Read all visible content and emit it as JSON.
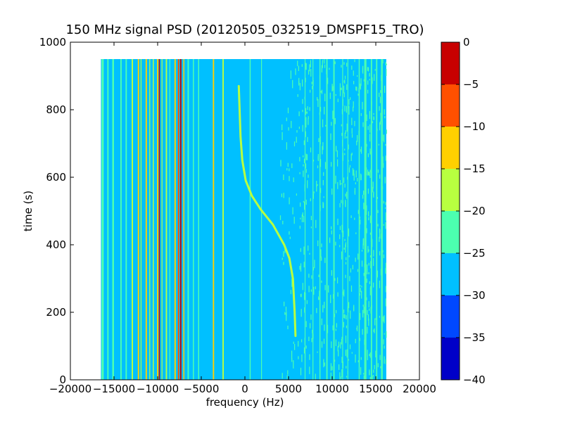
{
  "chart_data": {
    "type": "heatmap",
    "title": "150 MHz signal PSD (20120505_032519_DMSPF15_TRO)",
    "xlabel": "frequency (Hz)",
    "ylabel": "time (s)",
    "xlim": [
      -20000,
      20000
    ],
    "ylim": [
      0,
      1000
    ],
    "xticks": [
      -20000,
      -15000,
      -10000,
      -5000,
      0,
      5000,
      10000,
      15000,
      20000
    ],
    "yticks": [
      0,
      200,
      400,
      600,
      800,
      1000
    ],
    "data_extent": {
      "x": [
        -16500,
        16200
      ],
      "y": [
        0,
        950
      ]
    },
    "background_level": -27.5,
    "colorbar": {
      "ticks": [
        0,
        -5,
        -10,
        -15,
        -20,
        -25,
        -30,
        -35,
        -40
      ],
      "levels": [
        {
          "range": [
            -40,
            -35
          ],
          "color": "#0000c8"
        },
        {
          "range": [
            -35,
            -30
          ],
          "color": "#0048ff"
        },
        {
          "range": [
            -30,
            -25
          ],
          "color": "#00c0ff"
        },
        {
          "range": [
            -25,
            -20
          ],
          "color": "#4cffb0"
        },
        {
          "range": [
            -20,
            -15
          ],
          "color": "#b8ff40"
        },
        {
          "range": [
            -15,
            -10
          ],
          "color": "#ffd000"
        },
        {
          "range": [
            -10,
            -5
          ],
          "color": "#ff5000"
        },
        {
          "range": [
            -5,
            0
          ],
          "color": "#c80000"
        }
      ]
    },
    "stripes": [
      {
        "x": -16300,
        "width": 250,
        "level": -22
      },
      {
        "x": -15700,
        "width": 150,
        "level": -22
      },
      {
        "x": -15100,
        "width": 200,
        "level": -22
      },
      {
        "x": -14200,
        "width": 150,
        "level": -22
      },
      {
        "x": -13600,
        "width": 150,
        "level": -22
      },
      {
        "x": -12900,
        "width": 150,
        "level": -17
      },
      {
        "x": -12200,
        "width": 150,
        "level": -12
      },
      {
        "x": -11900,
        "width": 100,
        "level": -17
      },
      {
        "x": -11300,
        "width": 150,
        "level": -12
      },
      {
        "x": -10900,
        "width": 100,
        "level": -17
      },
      {
        "x": -10500,
        "width": 120,
        "level": -17
      },
      {
        "x": -10000,
        "width": 150,
        "level": -12
      },
      {
        "x": -9800,
        "width": 120,
        "level": -3
      },
      {
        "x": -9500,
        "width": 100,
        "level": -17
      },
      {
        "x": -9000,
        "width": 150,
        "level": -17
      },
      {
        "x": -8600,
        "width": 100,
        "level": -22
      },
      {
        "x": -8000,
        "width": 150,
        "level": -12
      },
      {
        "x": -7600,
        "width": 150,
        "level": -8
      },
      {
        "x": -7350,
        "width": 150,
        "level": -3
      },
      {
        "x": -7000,
        "width": 120,
        "level": -12
      },
      {
        "x": -6500,
        "width": 150,
        "level": -22
      },
      {
        "x": -5900,
        "width": 120,
        "level": -22
      },
      {
        "x": -5300,
        "width": 120,
        "level": -22
      },
      {
        "x": -3600,
        "width": 150,
        "level": -12
      },
      {
        "x": -2500,
        "width": 150,
        "level": -17
      },
      {
        "x": 600,
        "width": 120,
        "level": -22
      },
      {
        "x": 1900,
        "width": 80,
        "level": -22
      },
      {
        "x": 6900,
        "width": 100,
        "level": -22
      },
      {
        "x": 7800,
        "width": 100,
        "level": -22
      },
      {
        "x": 8600,
        "width": 120,
        "level": -22
      },
      {
        "x": 9400,
        "width": 150,
        "level": -22
      },
      {
        "x": 10200,
        "width": 150,
        "level": -22
      },
      {
        "x": 11200,
        "width": 100,
        "level": -22
      },
      {
        "x": 11800,
        "width": 100,
        "level": -22
      },
      {
        "x": 13100,
        "width": 120,
        "level": -22
      },
      {
        "x": 13800,
        "width": 250,
        "level": -22
      },
      {
        "x": 14500,
        "width": 150,
        "level": -22
      },
      {
        "x": 15100,
        "width": 150,
        "level": -22
      },
      {
        "x": 15700,
        "width": 200,
        "level": -22
      }
    ],
    "noise_band": {
      "x": [
        4000,
        16200
      ],
      "level": -22
    },
    "doppler_trace": {
      "level": -17,
      "points": [
        {
          "x": 5800,
          "y": 130
        },
        {
          "x": 5700,
          "y": 200
        },
        {
          "x": 5500,
          "y": 300
        },
        {
          "x": 5100,
          "y": 360
        },
        {
          "x": 4500,
          "y": 400
        },
        {
          "x": 3200,
          "y": 460
        },
        {
          "x": 1800,
          "y": 505
        },
        {
          "x": 800,
          "y": 545
        },
        {
          "x": 100,
          "y": 590
        },
        {
          "x": -300,
          "y": 650
        },
        {
          "x": -500,
          "y": 720
        },
        {
          "x": -700,
          "y": 870
        }
      ]
    }
  }
}
